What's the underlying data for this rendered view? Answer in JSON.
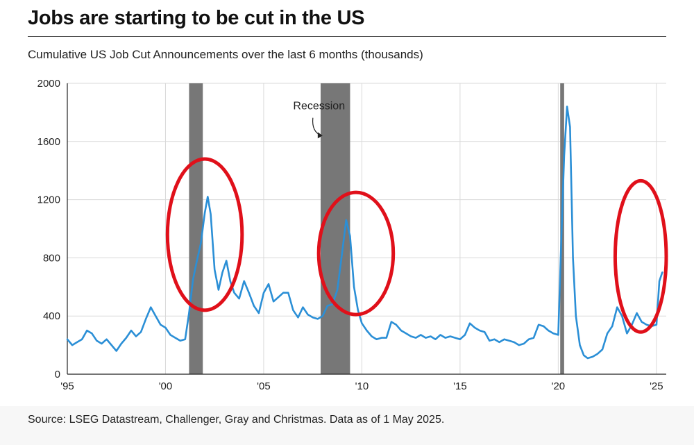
{
  "title": "Jobs are starting to be cut in the US",
  "subtitle": "Cumulative US Job Cut Announcements over the last 6 months (thousands)",
  "source": "Source: LSEG Datastream, Challenger, Gray and Christmas. Data as of 1 May 2025.",
  "colors": {
    "line": "#2b8fd6",
    "recession": "#777777",
    "grid": "#d9d9d9",
    "circle": "#e0101a"
  },
  "chart_data": {
    "type": "line",
    "title": "Cumulative US Job Cut Announcements over the last 6 months (thousands)",
    "xlabel": "",
    "ylabel": "",
    "xlim": [
      1995.0,
      2025.5
    ],
    "ylim": [
      0,
      2000
    ],
    "y_ticks": [
      0,
      400,
      800,
      1200,
      1600,
      2000
    ],
    "y_tick_labels": [
      "0",
      "400",
      "800",
      "1200",
      "1600",
      "2000"
    ],
    "x_ticks": [
      1995,
      2000,
      2005,
      2010,
      2015,
      2020,
      2025
    ],
    "x_tick_labels": [
      "'95",
      "'00",
      "'05",
      "'10",
      "'15",
      "'20",
      "'25"
    ],
    "grid": true,
    "recessions": [
      [
        2001.2,
        2001.9
      ],
      [
        2007.9,
        2009.4
      ],
      [
        2020.1,
        2020.3
      ]
    ],
    "annotation": {
      "label": "Recession",
      "at": 2008.0,
      "text_x": 2006.5,
      "text_y": 1820
    },
    "highlight_circles": [
      {
        "x": 2002.0,
        "y": 960,
        "rx": 1.9,
        "ry": 520
      },
      {
        "x": 2009.7,
        "y": 830,
        "rx": 1.9,
        "ry": 420
      },
      {
        "x": 2024.2,
        "y": 810,
        "rx": 1.3,
        "ry": 520
      }
    ],
    "series": [
      {
        "name": "Cumulative job cut announcements",
        "x": [
          1995.0,
          1995.25,
          1995.5,
          1995.75,
          1996.0,
          1996.25,
          1996.5,
          1996.75,
          1997.0,
          1997.25,
          1997.5,
          1997.75,
          1998.0,
          1998.25,
          1998.5,
          1998.75,
          1999.0,
          1999.25,
          1999.5,
          1999.75,
          2000.0,
          2000.25,
          2000.5,
          2000.75,
          2001.0,
          2001.2,
          2001.4,
          2001.6,
          2001.8,
          2002.0,
          2002.15,
          2002.3,
          2002.5,
          2002.7,
          2002.9,
          2003.1,
          2003.3,
          2003.5,
          2003.75,
          2004.0,
          2004.25,
          2004.5,
          2004.75,
          2005.0,
          2005.25,
          2005.5,
          2005.75,
          2006.0,
          2006.25,
          2006.5,
          2006.75,
          2007.0,
          2007.25,
          2007.5,
          2007.75,
          2008.0,
          2008.25,
          2008.5,
          2008.75,
          2009.0,
          2009.2,
          2009.4,
          2009.6,
          2009.8,
          2010.0,
          2010.25,
          2010.5,
          2010.75,
          2011.0,
          2011.25,
          2011.5,
          2011.75,
          2012.0,
          2012.25,
          2012.5,
          2012.75,
          2013.0,
          2013.25,
          2013.5,
          2013.75,
          2014.0,
          2014.25,
          2014.5,
          2014.75,
          2015.0,
          2015.25,
          2015.5,
          2015.75,
          2016.0,
          2016.25,
          2016.5,
          2016.75,
          2017.0,
          2017.25,
          2017.5,
          2017.75,
          2018.0,
          2018.25,
          2018.5,
          2018.75,
          2019.0,
          2019.25,
          2019.5,
          2019.75,
          2020.0,
          2020.15,
          2020.3,
          2020.45,
          2020.6,
          2020.75,
          2020.9,
          2021.1,
          2021.3,
          2021.5,
          2021.75,
          2022.0,
          2022.25,
          2022.5,
          2022.75,
          2023.0,
          2023.25,
          2023.5,
          2023.75,
          2024.0,
          2024.25,
          2024.5,
          2024.75,
          2025.0,
          2025.15,
          2025.3
        ],
        "values": [
          240,
          200,
          220,
          240,
          300,
          280,
          230,
          210,
          240,
          200,
          160,
          210,
          250,
          300,
          260,
          290,
          380,
          460,
          400,
          340,
          320,
          270,
          250,
          230,
          240,
          420,
          650,
          780,
          900,
          1110,
          1220,
          1100,
          720,
          580,
          700,
          780,
          640,
          560,
          520,
          640,
          560,
          470,
          420,
          560,
          620,
          500,
          530,
          560,
          560,
          440,
          390,
          460,
          410,
          390,
          380,
          400,
          470,
          480,
          580,
          840,
          1060,
          950,
          600,
          440,
          350,
          300,
          260,
          240,
          250,
          250,
          360,
          340,
          300,
          280,
          260,
          250,
          270,
          250,
          260,
          240,
          270,
          250,
          260,
          250,
          240,
          270,
          350,
          320,
          300,
          290,
          230,
          240,
          220,
          240,
          230,
          220,
          200,
          210,
          240,
          250,
          340,
          330,
          300,
          280,
          270,
          900,
          1500,
          1840,
          1700,
          800,
          400,
          200,
          130,
          110,
          120,
          140,
          170,
          280,
          330,
          460,
          400,
          280,
          340,
          420,
          360,
          340,
          330,
          340,
          640,
          700
        ]
      }
    ]
  }
}
